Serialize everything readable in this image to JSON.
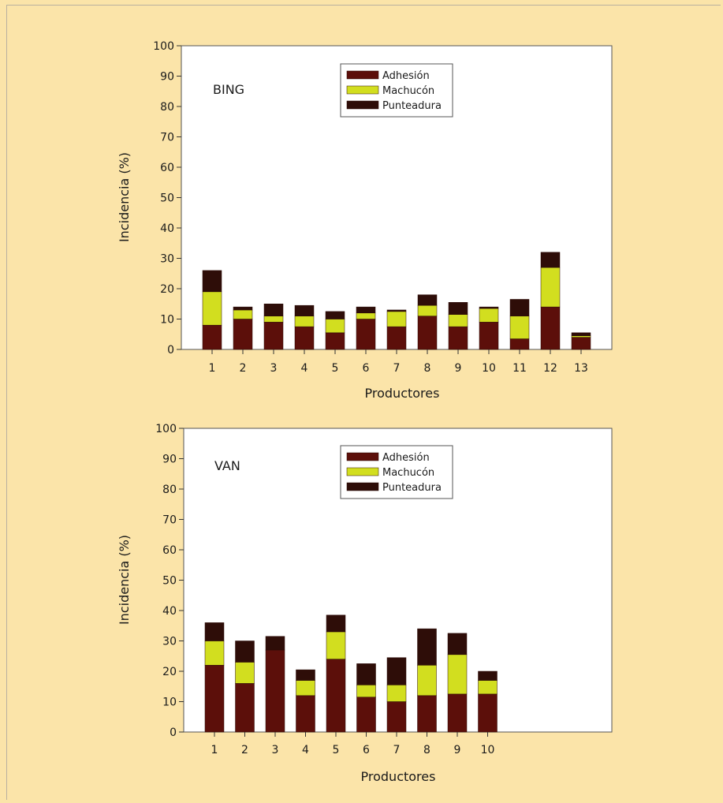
{
  "colors": {
    "background": "#fbe4a9",
    "plot_background": "#ffffff",
    "Adhesión": "#5c0f0a",
    "Machucón": "#d2de1f",
    "Punteadura": "#2e0d08"
  },
  "chart_data": [
    {
      "type": "bar",
      "stacked": true,
      "title": "BING",
      "xlabel": "Productores",
      "ylabel": "Incidencia (%)",
      "ylim": [
        0,
        100
      ],
      "yticks": [
        0,
        10,
        20,
        30,
        40,
        50,
        60,
        70,
        80,
        90,
        100
      ],
      "categories": [
        "1",
        "2",
        "3",
        "4",
        "5",
        "6",
        "7",
        "8",
        "9",
        "10",
        "11",
        "12",
        "13"
      ],
      "series": [
        {
          "name": "Adhesión",
          "values": [
            8,
            10,
            9,
            7.5,
            5.5,
            10,
            7.5,
            11,
            7.5,
            9,
            3.5,
            14,
            4
          ]
        },
        {
          "name": "Machucón",
          "values": [
            11,
            3,
            2,
            3.5,
            4.5,
            2,
            5,
            3.5,
            4,
            4.5,
            7.5,
            13,
            0.5
          ]
        },
        {
          "name": "Punteadura",
          "values": [
            7,
            1,
            4,
            3.5,
            2.5,
            2,
            0.5,
            3.5,
            4,
            0.5,
            5.5,
            5,
            1
          ]
        }
      ],
      "legend": "top-center",
      "grid": false
    },
    {
      "type": "bar",
      "stacked": true,
      "title": "VAN",
      "xlabel": "Productores",
      "ylabel": "Incidencia (%)",
      "ylim": [
        0,
        100
      ],
      "yticks": [
        0,
        10,
        20,
        30,
        40,
        50,
        60,
        70,
        80,
        90,
        100
      ],
      "categories": [
        "1",
        "2",
        "3",
        "4",
        "5",
        "6",
        "7",
        "8",
        "9",
        "10"
      ],
      "series": [
        {
          "name": "Adhesión",
          "values": [
            22,
            16,
            27,
            12,
            24,
            11.5,
            10,
            12,
            12.5,
            12.5
          ]
        },
        {
          "name": "Machucón",
          "values": [
            8,
            7,
            0,
            5,
            9,
            4,
            5.5,
            10,
            13,
            4.5
          ]
        },
        {
          "name": "Punteadura",
          "values": [
            6,
            7,
            4.5,
            3.5,
            5.5,
            7,
            9,
            12,
            7,
            3
          ]
        }
      ],
      "legend": "top-center",
      "grid": false
    }
  ]
}
